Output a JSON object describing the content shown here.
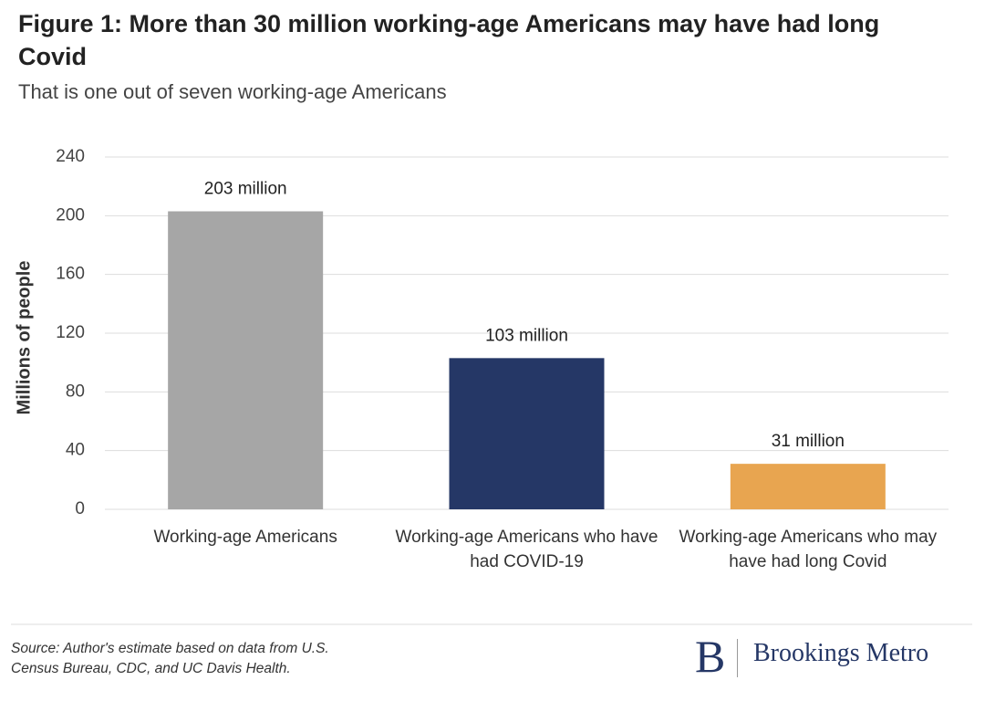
{
  "chart_data": {
    "type": "bar",
    "title": "Figure 1: More than 30 million working-age Americans may have had long Covid",
    "subtitle": "That is one out of seven working-age Americans",
    "y_label": "Millions of people",
    "categories": [
      "Working-age Americans",
      "Working-age Americans who have had COVID-19",
      "Working-age Americans who may have had long Covid"
    ],
    "values": [
      203,
      103,
      31
    ],
    "value_labels": [
      "203 million",
      "103 million",
      "31 million"
    ],
    "colors": [
      "#a6a6a6",
      "#253766",
      "#e8a550"
    ],
    "ylim": [
      0,
      240
    ],
    "yticks": [
      0,
      40,
      80,
      120,
      160,
      200,
      240
    ],
    "grid": true
  },
  "footer": {
    "source": "Source: Author's estimate based on data from U.S. Census Bureau, CDC, and UC Davis Health.",
    "logo_letter": "B",
    "logo_text": "Brookings Metro"
  }
}
